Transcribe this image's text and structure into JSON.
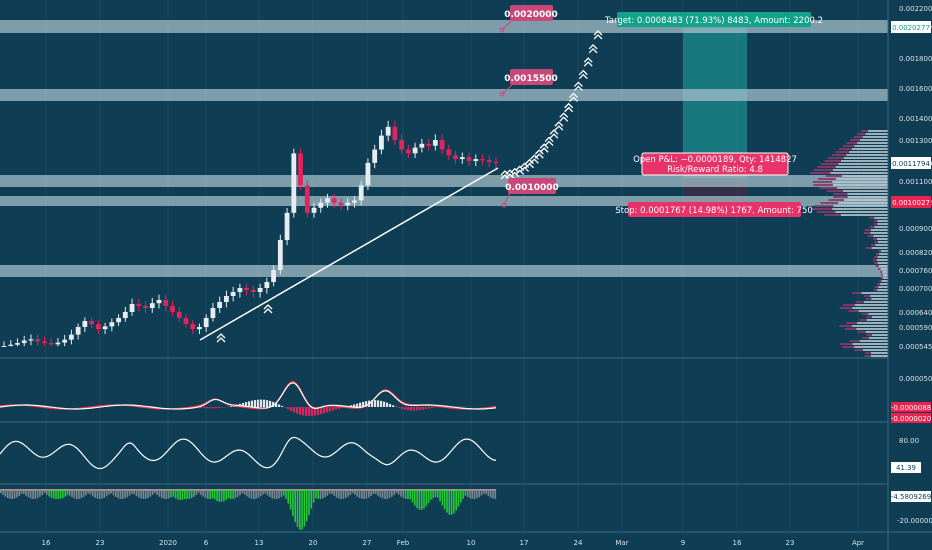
{
  "colors": {
    "background": "#0f3d53",
    "zone": "#a9c2cd",
    "up": "#e6ecef",
    "down": "#e0245e",
    "target_box": "#1e8c8c",
    "target_label": "#12a28a",
    "stop_label": "#e8336a",
    "price_label_pink": "#c8487a",
    "volume_profile": "#b5c6cf",
    "volume_profile_down": "#8a3a6a",
    "macd_signal": "#ff3a4a",
    "hist_pos": "#26c93a",
    "hist_neg": "#7a8a90",
    "axis_text": "#d8e2e7",
    "current_price_tag": "#ffffff",
    "neg_tag": "#e8234e"
  },
  "annotations": {
    "level_high": "0.0020000",
    "level_mid": "0.0015500",
    "level_low": "0.0010000",
    "target": "Target: 0.0008483 (71.93%) 8483, Amount: 2200.2",
    "pnl_line1": "Open P&L: −0.0000189, Qty: 1414827",
    "pnl_line2": "Risk/Reward Ratio: 4.8",
    "stop": "Stop: 0.0001767 (14.98%) 1767, Amount: 750"
  },
  "price_axis": {
    "ticks": [
      "0.0022000",
      "0.0020277",
      "0.0018000",
      "0.0016000",
      "0.0014000",
      "0.0013000",
      "0.0011794",
      "0.0011000",
      "0.0010027",
      "0.0009000",
      "0.0008200",
      "0.0007600",
      "0.0007000",
      "0.0006400",
      "0.0005900",
      "0.0005450"
    ],
    "current_tag": "0.0011794",
    "target_tag": "0.0020277",
    "stop_tag": "0.0010027"
  },
  "macd_axis": {
    "ticks": [
      "0.0000500"
    ],
    "tag1": "-0.0000088",
    "tag2": "-0.0000020"
  },
  "rsi_axis": {
    "ticks": [
      "80.00"
    ],
    "tag": "41.39"
  },
  "osc_axis": {
    "tag": "-4.5809269",
    "ticks": [
      "-20.000000"
    ]
  },
  "time_axis": {
    "labels": [
      "16",
      "23",
      "2020",
      "6",
      "13",
      "20",
      "27",
      "Feb",
      "10",
      "17",
      "24",
      "Mar",
      "9",
      "16",
      "23",
      "Apr"
    ]
  },
  "chart_data": {
    "type": "candlestick",
    "ylim": [
      0.00052,
      0.0022
    ],
    "zones": [
      0.002,
      0.00155,
      0.00108,
      0.001,
      0.00074
    ],
    "trendline": [
      [
        0.00057,
        0.00114
      ]
    ],
    "close_series": [
      0.000545,
      0.000548,
      0.000552,
      0.000558,
      0.000561,
      0.000556,
      0.000552,
      0.000549,
      0.000553,
      0.00056,
      0.000572,
      0.00059,
      0.00061,
      0.0006,
      0.000585,
      0.000592,
      0.000606,
      0.00062,
      0.00064,
      0.00066,
      0.000655,
      0.00065,
      0.000662,
      0.00067,
      0.000655,
      0.00064,
      0.00062,
      0.0006,
      0.000585,
      0.00059,
      0.00062,
      0.00065,
      0.000665,
      0.00068,
      0.00069,
      0.0007,
      0.000695,
      0.00069,
      0.0007,
      0.00072,
      0.00076,
      0.00086,
      0.00096,
      0.00123,
      0.00108,
      0.00096,
      0.00098,
      0.001,
      0.00102,
      0.001,
      0.00099,
      0.001,
      0.00101,
      0.00108,
      0.00118,
      0.00125,
      0.00132,
      0.00136,
      0.0013,
      0.00125,
      0.00123,
      0.00126,
      0.00128,
      0.00127,
      0.0013,
      0.00125,
      0.00122,
      0.0012,
      0.00121,
      0.00119,
      0.0012,
      0.001195,
      0.001185,
      0.001179
    ],
    "projection_chevrons": 20
  }
}
